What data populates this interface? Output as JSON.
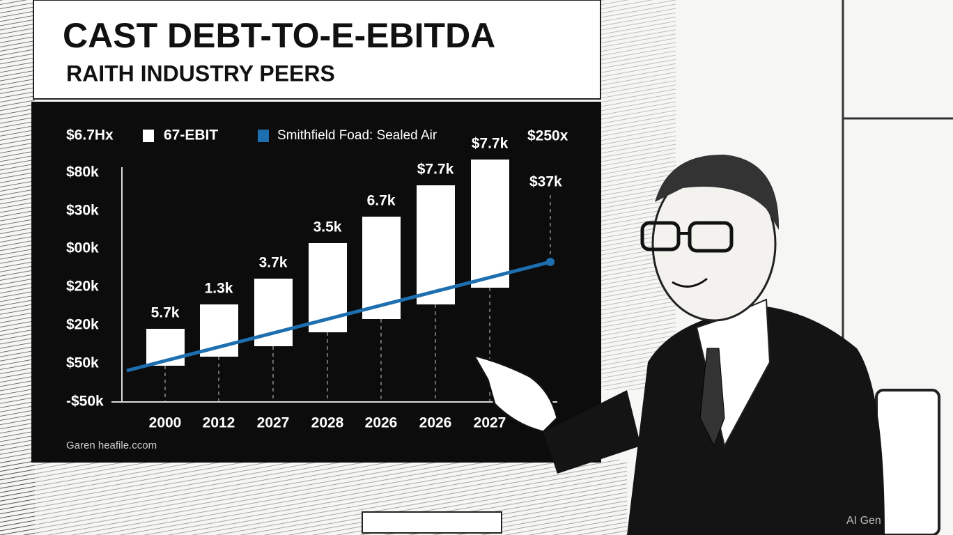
{
  "header": {
    "title": "CAST DEBT-TO-E-EBITDA",
    "subtitle": "RAITH INDUSTRY PEERS"
  },
  "legend": {
    "left_label": "$6.7Hx",
    "items": [
      "67-EBIT",
      "Smithfield Foad:  Sealed Air"
    ],
    "right_label": "$250x"
  },
  "y_labels": [
    "$80k",
    "$30k",
    "$00k",
    "$20k",
    "$20k",
    "$50k",
    "-$50k"
  ],
  "x_labels": [
    "2000",
    "2012",
    "2027",
    "2028",
    "2026",
    "2026",
    "2027"
  ],
  "bar_labels": [
    "5.7k",
    "1.3k",
    "3.7k",
    "3.5k",
    "6.7k",
    "$7.7k",
    "$7.7k"
  ],
  "line_end_label": "$37k",
  "source": "Garen heafile.ccom",
  "watermark": "AI Gen"
}
